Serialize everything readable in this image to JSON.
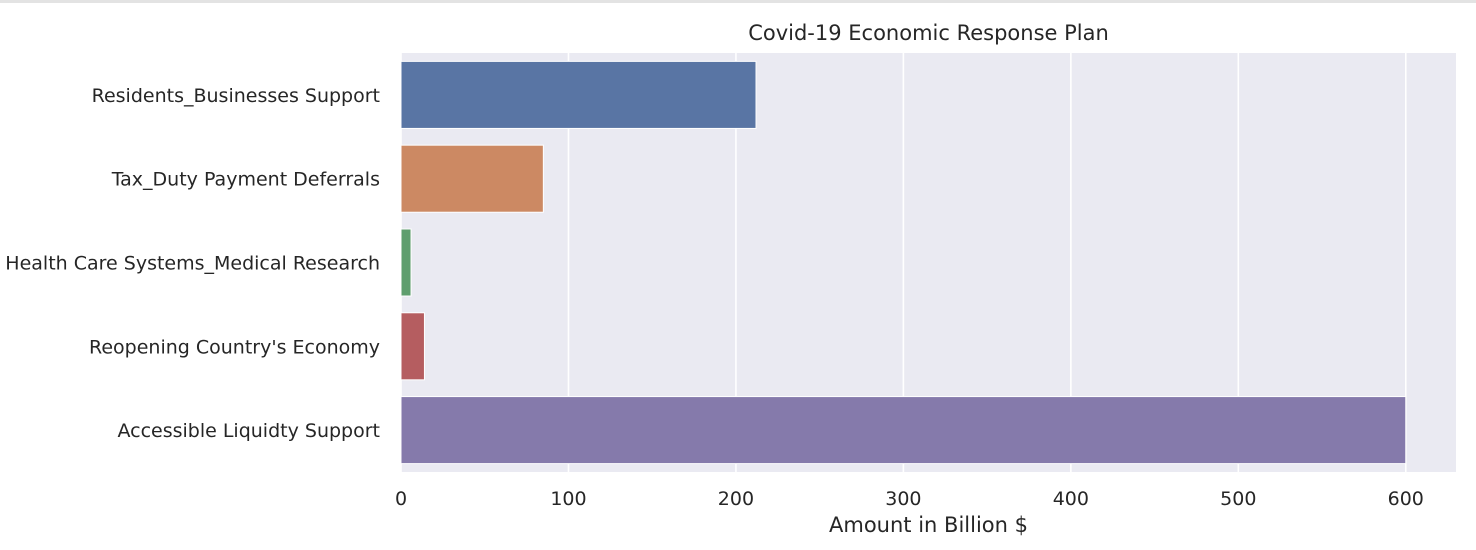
{
  "chart_data": {
    "type": "bar",
    "orientation": "horizontal",
    "title": "Covid-19 Economic Response Plan",
    "xlabel": "Amount in Billion $",
    "ylabel": "",
    "xlim": [
      0,
      630
    ],
    "xticks": [
      0,
      100,
      200,
      300,
      400,
      500,
      600
    ],
    "categories": [
      "Residents_Businesses Support",
      "Tax_Duty Payment Deferrals",
      "Health Care Systems_Medical Research",
      "Reopening Country's Economy",
      "Accessible Liquidty Support"
    ],
    "values": [
      212,
      85,
      6,
      14,
      600
    ],
    "colors": [
      "#5975a4",
      "#cc8963",
      "#5f9e6e",
      "#b55d60",
      "#857aab"
    ],
    "background": "#eaeaf2",
    "grid": true,
    "grid_color": "#ffffff"
  }
}
